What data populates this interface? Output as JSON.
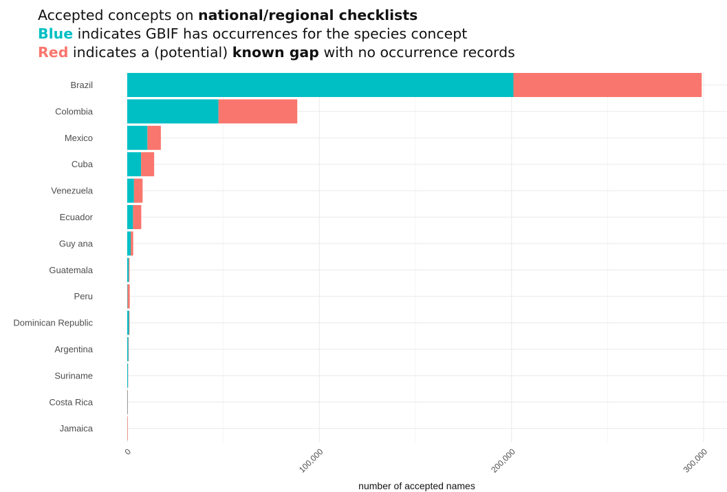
{
  "title": {
    "line1_prefix": "Accepted concepts on ",
    "line1_bold": "national/regional checklists",
    "line2_colored": "Blue",
    "line2_rest": " indicates GBIF has occurrences for the species concept",
    "line3_colored": "Red",
    "line3_mid": " indicates a (potential) ",
    "line3_bold": "known gap",
    "line3_rest": " with no occurrence records"
  },
  "chart_data": {
    "type": "bar",
    "orientation": "horizontal",
    "stacked": true,
    "categories": [
      "Brazil",
      "Colombia",
      "Mexico",
      "Cuba",
      "Venezuela",
      "Ecuador",
      "Guy ana",
      "Guatemala",
      "Peru",
      "Dominican Republic",
      "Argentina",
      "Suriname",
      "Costa Rica",
      "Jamaica"
    ],
    "series": [
      {
        "color": "#00BFC4",
        "values": [
          201000,
          47500,
          10500,
          7200,
          3500,
          3000,
          1800,
          800,
          200,
          900,
          600,
          400,
          150,
          50
        ]
      },
      {
        "color": "#F8766D",
        "values": [
          98000,
          41000,
          7000,
          6800,
          4500,
          4300,
          1300,
          400,
          1100,
          300,
          200,
          100,
          200,
          250
        ]
      }
    ],
    "xlabel": "number of accepted names",
    "xlim": [
      0,
      305000
    ],
    "xticks": [
      0,
      100000,
      200000,
      300000
    ],
    "xtick_labels": [
      "0",
      "100,000",
      "200,000",
      "300,000"
    ],
    "grid": true
  }
}
